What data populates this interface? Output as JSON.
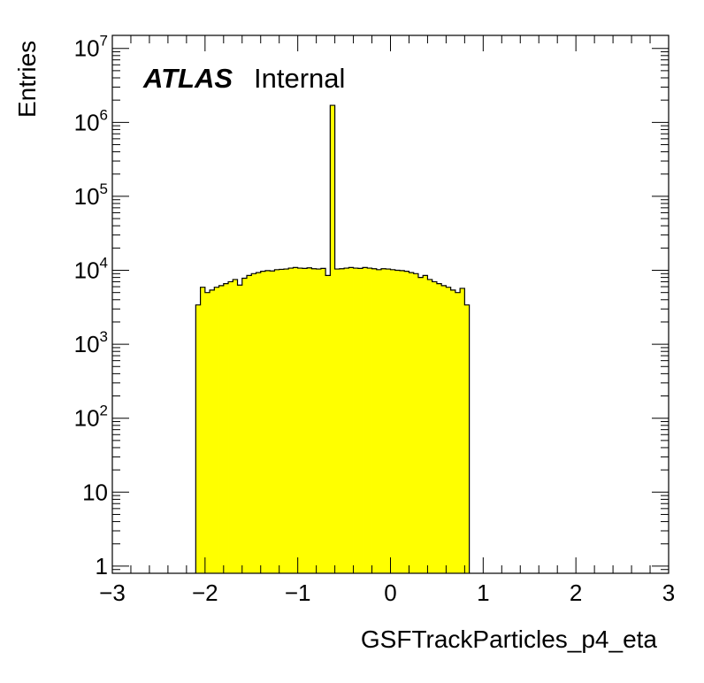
{
  "chart_data": {
    "type": "bar",
    "histogram": true,
    "xlabel": "GSFTrackParticles_p4_eta",
    "ylabel": "Entries",
    "xlim": [
      -3,
      3
    ],
    "ylim": [
      0.8,
      15000000
    ],
    "yscale": "log",
    "grid": false,
    "legend": "none",
    "fill_color": "#ffff00",
    "line_color": "#000000",
    "x_tick_labels": [
      {
        "value": -3,
        "label": "−3"
      },
      {
        "value": -2,
        "label": "−2"
      },
      {
        "value": -1,
        "label": "−1"
      },
      {
        "value": 0,
        "label": "0"
      },
      {
        "value": 1,
        "label": "1"
      },
      {
        "value": 2,
        "label": "2"
      },
      {
        "value": 3,
        "label": "3"
      }
    ],
    "y_tick_labels": [
      {
        "value": 1,
        "base": "1",
        "exp": ""
      },
      {
        "value": 10,
        "base": "10",
        "exp": ""
      },
      {
        "value": 100,
        "base": "10",
        "exp": "2"
      },
      {
        "value": 1000,
        "base": "10",
        "exp": "3"
      },
      {
        "value": 10000,
        "base": "10",
        "exp": "4"
      },
      {
        "value": 100000,
        "base": "10",
        "exp": "5"
      },
      {
        "value": 1000000,
        "base": "10",
        "exp": "6"
      },
      {
        "value": 10000000,
        "base": "10",
        "exp": "7"
      }
    ],
    "bin_edges_start": -2.1,
    "bin_width": 0.05,
    "values": [
      3400,
      5900,
      5000,
      5400,
      5900,
      6200,
      6600,
      7000,
      7500,
      6300,
      7800,
      8500,
      9000,
      9300,
      9700,
      9900,
      9800,
      10200,
      10300,
      10400,
      10700,
      10900,
      10700,
      10600,
      10800,
      10500,
      10400,
      10600,
      8500,
      1700000,
      10400,
      10500,
      10700,
      10900,
      10700,
      10600,
      10900,
      10700,
      10500,
      10200,
      10500,
      10400,
      10200,
      10000,
      9900,
      9700,
      9300,
      9000,
      8000,
      8500,
      7500,
      7000,
      6600,
      6200,
      5900,
      5400,
      5000,
      5700,
      3400
    ]
  },
  "annotation": {
    "atlas": "ATLAS",
    "internal": "Internal"
  }
}
